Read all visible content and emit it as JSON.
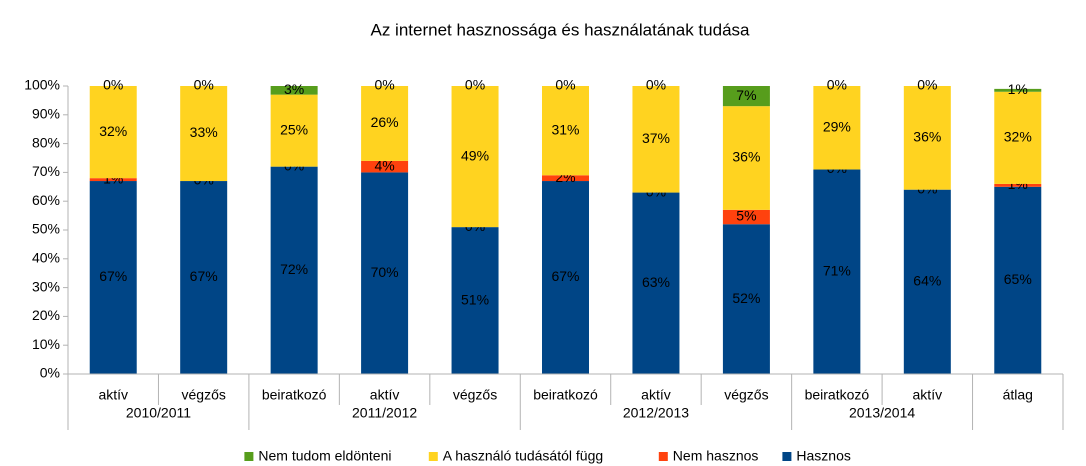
{
  "chart_data": {
    "type": "stacked_bar",
    "title": "Az internet hasznossága és használatának tudása",
    "categories": [
      "aktív",
      "végzős",
      "beiratkozó",
      "aktív",
      "végzős",
      "beiratkozó",
      "aktív",
      "végzős",
      "beiratkozó",
      "aktív",
      "átlag"
    ],
    "groups": [
      {
        "name": "2010/2011",
        "size": 2
      },
      {
        "name": "2011/2012",
        "size": 3
      },
      {
        "name": "2012/2013",
        "size": 3
      },
      {
        "name": "2013/2014",
        "size": 2
      },
      {
        "name": null,
        "size": 1
      }
    ],
    "series": [
      {
        "name": "Nem tudom eldönteni",
        "color": "#579d1c",
        "values": [
          0,
          0,
          3,
          0,
          0,
          0,
          0,
          7,
          0,
          0,
          1
        ],
        "value_labels": [
          "0%",
          "0%",
          "3%",
          "0%",
          "0%",
          "0%",
          "0%",
          "7%",
          "0%",
          "0%",
          "1%"
        ]
      },
      {
        "name": "A használó tudásától függ",
        "color": "#ffd320",
        "values": [
          32,
          33,
          25,
          26,
          49,
          31,
          37,
          36,
          29,
          36,
          32
        ],
        "value_labels": [
          "32%",
          "33%",
          "25%",
          "26%",
          "49%",
          "31%",
          "37%",
          "36%",
          "29%",
          "36%",
          "32%"
        ]
      },
      {
        "name": "Nem hasznos",
        "color": "#ff420e",
        "values": [
          1,
          0,
          0,
          4,
          0,
          2,
          0,
          5,
          0,
          0,
          1
        ],
        "value_labels": [
          "1%",
          "0%",
          "0%",
          "4%",
          "0%",
          "2%",
          "0%",
          "5%",
          "0%",
          "0%",
          "1%"
        ]
      },
      {
        "name": "Hasznos",
        "color": "#004586",
        "values": [
          67,
          67,
          72,
          70,
          51,
          67,
          63,
          52,
          71,
          64,
          65
        ],
        "value_labels": [
          "67%",
          "67%",
          "72%",
          "70%",
          "51%",
          "67%",
          "63%",
          "52%",
          "71%",
          "64%",
          "65%"
        ]
      }
    ],
    "ylim": [
      0,
      100
    ],
    "yticks": [
      {
        "value": 0,
        "label": "0%"
      },
      {
        "value": 10,
        "label": "10%"
      },
      {
        "value": 20,
        "label": "20%"
      },
      {
        "value": 30,
        "label": "30%"
      },
      {
        "value": 40,
        "label": "40%"
      },
      {
        "value": 50,
        "label": "50%"
      },
      {
        "value": 60,
        "label": "60%"
      },
      {
        "value": 70,
        "label": "70%"
      },
      {
        "value": 80,
        "label": "80%"
      },
      {
        "value": 90,
        "label": "90%"
      },
      {
        "value": 100,
        "label": "100%"
      }
    ],
    "grid": false,
    "legend": "bottom"
  }
}
